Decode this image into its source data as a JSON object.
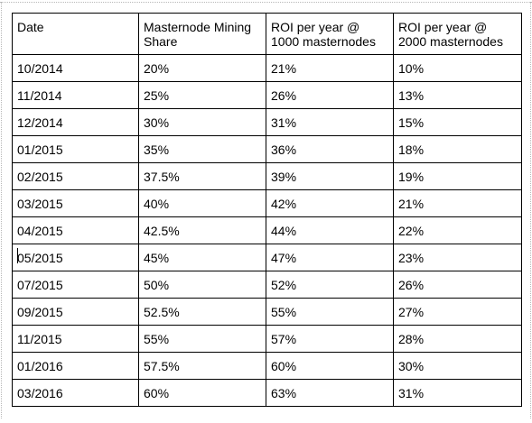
{
  "table": {
    "headers": [
      "Date",
      "Masternode Mining Share",
      "ROI per year @ 1000 masternodes",
      "ROI per year @ 2000 masternodes"
    ],
    "rows": [
      [
        "10/2014",
        "20%",
        "21%",
        "10%"
      ],
      [
        "11/2014",
        "25%",
        "26%",
        "13%"
      ],
      [
        "12/2014",
        "30%",
        "31%",
        "15%"
      ],
      [
        "01/2015",
        "35%",
        "36%",
        "18%"
      ],
      [
        "02/2015",
        "37.5%",
        "39%",
        "19%"
      ],
      [
        "03/2015",
        "40%",
        "42%",
        "21%"
      ],
      [
        "04/2015",
        "42.5%",
        "44%",
        "22%"
      ],
      [
        "05/2015",
        "45%",
        "47%",
        "23%"
      ],
      [
        "07/2015",
        "50%",
        "52%",
        "26%"
      ],
      [
        "09/2015",
        "52.5%",
        "55%",
        "27%"
      ],
      [
        "11/2015",
        "55%",
        "57%",
        "28%"
      ],
      [
        "01/2016",
        "57.5%",
        "60%",
        "30%"
      ],
      [
        "03/2016",
        "60%",
        "63%",
        "31%"
      ]
    ]
  }
}
